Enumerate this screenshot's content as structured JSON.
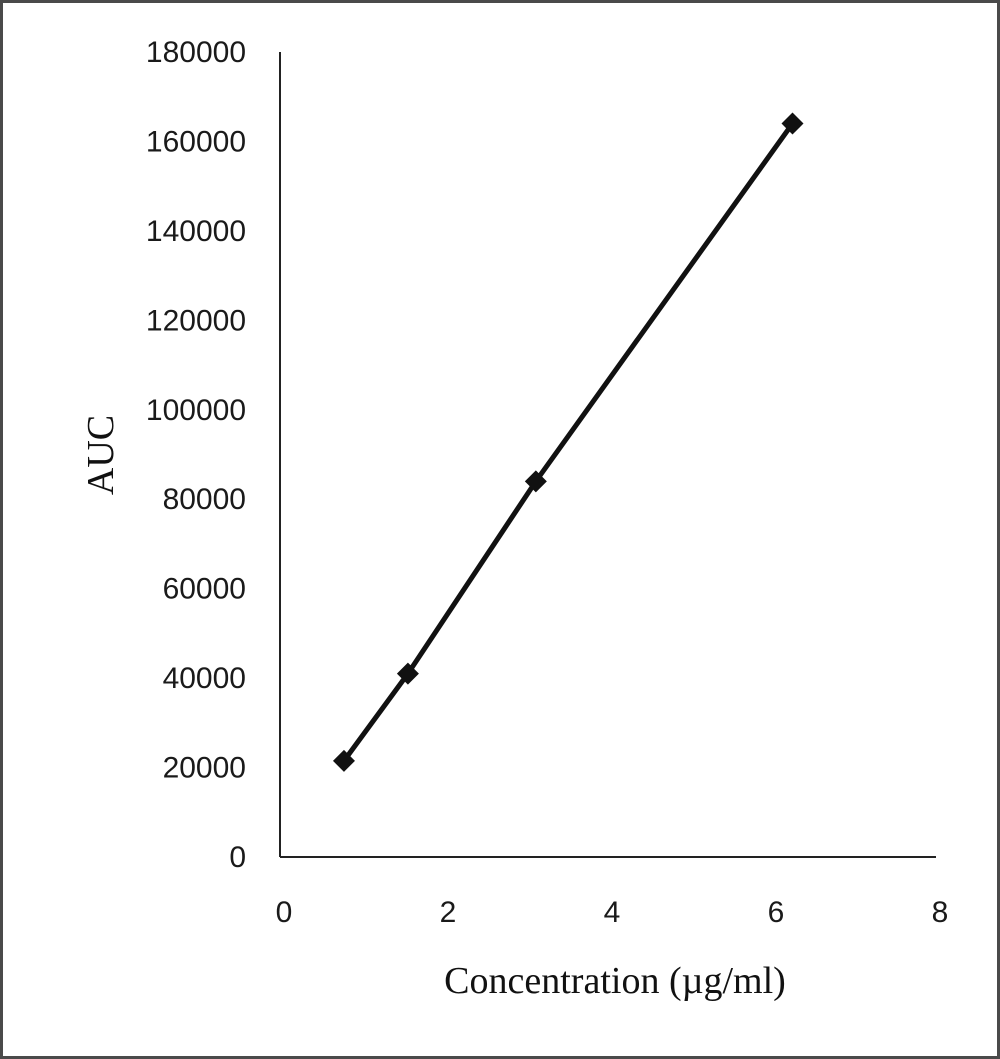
{
  "chart_data": {
    "type": "scatter",
    "title": "",
    "xlabel": "Concentration (µg/ml)",
    "ylabel": "AUC",
    "xlim": [
      0,
      8
    ],
    "ylim": [
      0,
      180000
    ],
    "xticks": [
      0,
      2,
      4,
      6,
      8
    ],
    "yticks": [
      0,
      20000,
      40000,
      60000,
      80000,
      100000,
      120000,
      140000,
      160000,
      180000
    ],
    "xtick_labels": [
      "0",
      "2",
      "4",
      "6",
      "8"
    ],
    "ytick_labels": [
      "0",
      "20000",
      "40000",
      "60000",
      "80000",
      "100000",
      "120000",
      "140000",
      "160000",
      "180000"
    ],
    "grid": false,
    "legend": "none",
    "line_color": "#111111",
    "marker": "diamond",
    "series": [
      {
        "x": [
          0.78,
          1.56,
          3.12,
          6.25
        ],
        "y": [
          21500,
          41000,
          84000,
          164000
        ]
      }
    ]
  }
}
